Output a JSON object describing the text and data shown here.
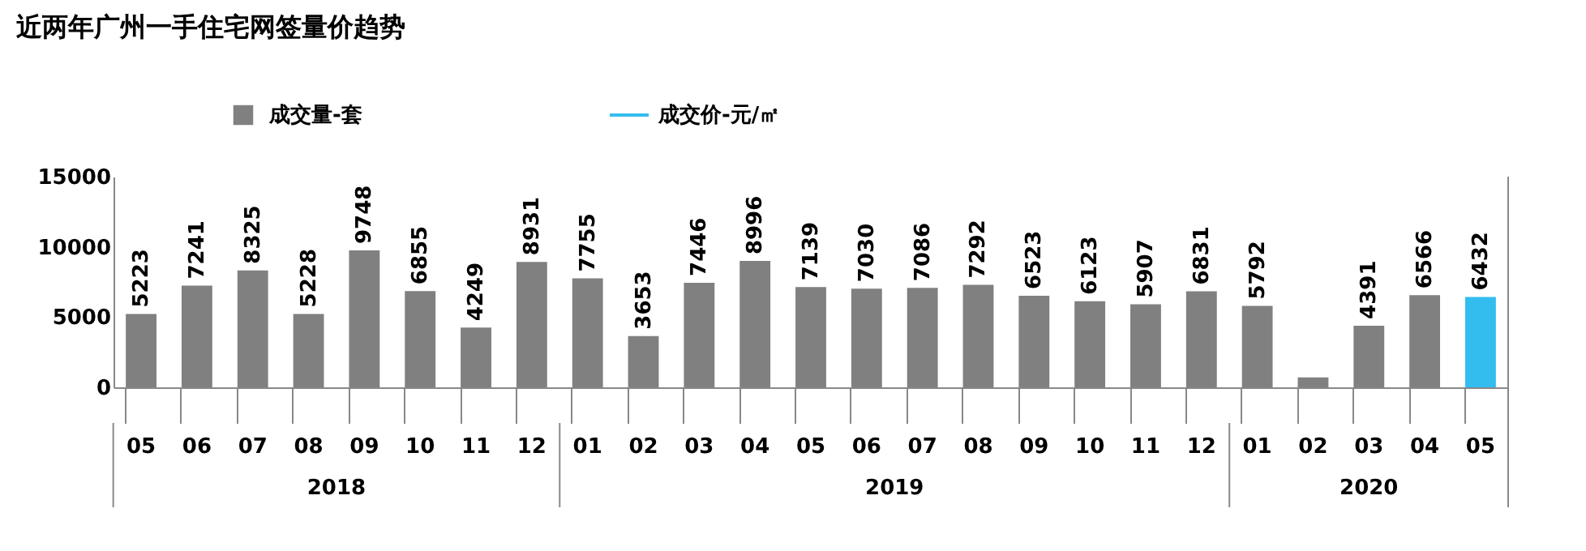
{
  "chart_data": {
    "type": "bar",
    "title": "近两年广州一手住宅网签量价趋势",
    "categories": [
      "05",
      "06",
      "07",
      "08",
      "09",
      "10",
      "11",
      "12",
      "01",
      "02",
      "03",
      "04",
      "05",
      "06",
      "07",
      "08",
      "09",
      "10",
      "11",
      "12",
      "01",
      "02",
      "03",
      "04",
      "05"
    ],
    "series": [
      {
        "name": "成交量-套",
        "color": "#808080",
        "values": [
          5223,
          7241,
          8325,
          5228,
          9748,
          6855,
          4249,
          8931,
          7755,
          3653,
          7446,
          8996,
          7139,
          7030,
          7086,
          7292,
          6523,
          6123,
          5907,
          6831,
          5792,
          700,
          4391,
          6566,
          null
        ],
        "value_labels": [
          "5223",
          "7241",
          "8325",
          "5228",
          "9748",
          "6855",
          "4249",
          "8931",
          "7755",
          "3653",
          "7446",
          "8996",
          "7139",
          "7030",
          "7086",
          "7292",
          "6523",
          "6123",
          "5907",
          "6831",
          "5792",
          null,
          "4391",
          "6566",
          null
        ]
      },
      {
        "name": "成交价-元/㎡",
        "color": "#33bdef",
        "values": [
          null,
          null,
          null,
          null,
          null,
          null,
          null,
          null,
          null,
          null,
          null,
          null,
          null,
          null,
          null,
          null,
          null,
          null,
          null,
          null,
          null,
          null,
          null,
          null,
          6432
        ],
        "value_labels": [
          null,
          null,
          null,
          null,
          null,
          null,
          null,
          null,
          null,
          null,
          null,
          null,
          null,
          null,
          null,
          null,
          null,
          null,
          null,
          null,
          null,
          null,
          null,
          null,
          "6432"
        ]
      }
    ],
    "ylim": [
      0,
      15000
    ],
    "yticks": [
      0,
      5000,
      10000,
      15000
    ],
    "grid": false,
    "legend": "top",
    "annotations": [
      "2018",
      "2019",
      "2020"
    ]
  }
}
